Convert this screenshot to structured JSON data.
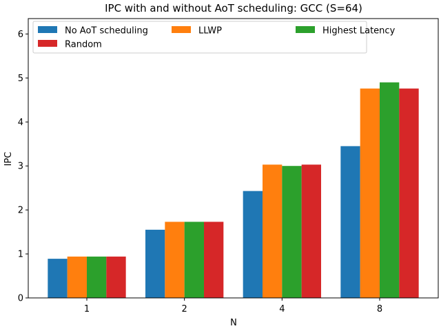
{
  "chart_data": {
    "type": "bar",
    "title": "IPC with and without AoT scheduling: GCC (S=64)",
    "xlabel": "N",
    "ylabel": "IPC",
    "categories": [
      "1",
      "2",
      "4",
      "8"
    ],
    "ylim": [
      0,
      6.35
    ],
    "yticks": [
      0,
      1,
      2,
      3,
      4,
      5,
      6
    ],
    "grid": false,
    "legend": {
      "position": "top-left",
      "columns": 3
    },
    "series": [
      {
        "name": "No AoT scheduling",
        "color": "#1f77b4",
        "values": [
          0.89,
          1.55,
          2.43,
          3.45
        ]
      },
      {
        "name": "LLWP",
        "color": "#ff7f0e",
        "values": [
          0.94,
          1.73,
          3.03,
          4.76
        ]
      },
      {
        "name": "Highest Latency",
        "color": "#2ca02c",
        "values": [
          0.94,
          1.73,
          3.0,
          4.9
        ]
      },
      {
        "name": "Random",
        "color": "#d62728",
        "values": [
          0.94,
          1.73,
          3.03,
          4.76
        ]
      }
    ]
  }
}
